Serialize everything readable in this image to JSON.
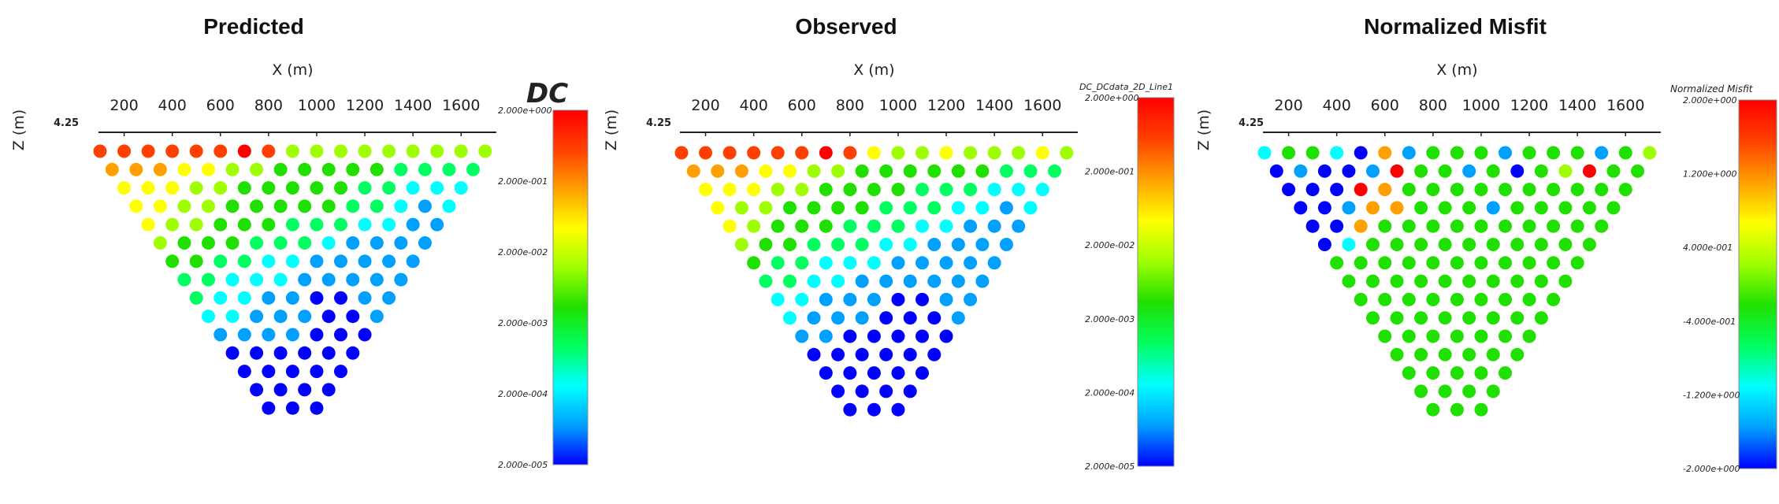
{
  "figure": {
    "colors": {
      "colormap": [
        "#0000ff",
        "#00a0ff",
        "#00ffff",
        "#00ff60",
        "#20e000",
        "#9fff00",
        "#ffff00",
        "#ffa000",
        "#ff4000",
        "#ff0000"
      ]
    }
  },
  "chart_data": [
    {
      "type": "scatter",
      "title": "Predicted",
      "xlabel": "X (m)",
      "ylabel": "Z (m)",
      "x_ticks": [
        "200",
        "400",
        "600",
        "800",
        "1000",
        "1200",
        "1400",
        "1600"
      ],
      "z_tick_label": "4.25",
      "xlim": [
        100,
        1720
      ],
      "colorbar": {
        "title": "DC",
        "scale": "log",
        "ticks": [
          "2.000e+000",
          "2.000e-001",
          "2.000e-002",
          "2.000e-003",
          "2.000e-004",
          "2.000e-005"
        ]
      },
      "pseudosection": {
        "rows": 15,
        "x_start": 100,
        "x_spacing": 100,
        "first_row_count": 17,
        "color_index_rows": [
          [
            8,
            8,
            8,
            8,
            8,
            8,
            9,
            8,
            5,
            5,
            5,
            5,
            5,
            5,
            5,
            5,
            5
          ],
          [
            7,
            7,
            7,
            6,
            6,
            5,
            5,
            4,
            4,
            4,
            4,
            4,
            3,
            3,
            3,
            3
          ],
          [
            6,
            6,
            6,
            5,
            5,
            4,
            4,
            4,
            4,
            4,
            3,
            3,
            2,
            2,
            2
          ],
          [
            6,
            6,
            5,
            5,
            4,
            4,
            4,
            4,
            4,
            3,
            3,
            2,
            1,
            2
          ],
          [
            6,
            5,
            5,
            4,
            4,
            4,
            3,
            3,
            3,
            2,
            2,
            1,
            1
          ],
          [
            5,
            4,
            4,
            4,
            3,
            3,
            3,
            2,
            1,
            1,
            1,
            1
          ],
          [
            4,
            4,
            3,
            3,
            2,
            2,
            1,
            1,
            1,
            1,
            1
          ],
          [
            3,
            3,
            2,
            2,
            2,
            1,
            1,
            1,
            1,
            1
          ],
          [
            3,
            2,
            2,
            1,
            1,
            0,
            0,
            1,
            1
          ],
          [
            2,
            2,
            1,
            1,
            1,
            0,
            0,
            1
          ],
          [
            1,
            1,
            1,
            1,
            0,
            0,
            0
          ],
          [
            0,
            0,
            0,
            0,
            0,
            0
          ],
          [
            0,
            0,
            0,
            0,
            0
          ],
          [
            0,
            0,
            0,
            0
          ],
          [
            0,
            0,
            0
          ]
        ]
      }
    },
    {
      "type": "scatter",
      "title": "Observed",
      "xlabel": "X (m)",
      "ylabel": "Z (m)",
      "x_ticks": [
        "200",
        "400",
        "600",
        "800",
        "1000",
        "1200",
        "1400",
        "1600"
      ],
      "z_tick_label": "4.25",
      "xlim": [
        100,
        1720
      ],
      "colorbar": {
        "title": "DC_DCdata_2D_Line1",
        "scale": "log",
        "ticks": [
          "2.000e+000",
          "2.000e-001",
          "2.000e-002",
          "2.000e-003",
          "2.000e-004",
          "2.000e-005"
        ]
      },
      "pseudosection": {
        "rows": 15,
        "x_start": 100,
        "x_spacing": 100,
        "first_row_count": 17,
        "color_index_rows": [
          [
            8,
            8,
            8,
            8,
            8,
            8,
            9,
            8,
            6,
            5,
            5,
            6,
            5,
            5,
            5,
            6,
            5
          ],
          [
            7,
            7,
            7,
            6,
            6,
            5,
            5,
            4,
            4,
            4,
            4,
            4,
            4,
            3,
            3,
            3
          ],
          [
            6,
            6,
            6,
            5,
            5,
            4,
            4,
            4,
            4,
            3,
            3,
            3,
            2,
            2,
            2
          ],
          [
            6,
            5,
            5,
            4,
            4,
            4,
            4,
            3,
            3,
            3,
            2,
            2,
            1,
            2
          ],
          [
            6,
            5,
            4,
            4,
            4,
            3,
            3,
            3,
            2,
            2,
            1,
            1,
            1
          ],
          [
            5,
            4,
            4,
            3,
            3,
            3,
            2,
            2,
            1,
            1,
            1,
            1
          ],
          [
            4,
            3,
            3,
            2,
            2,
            2,
            1,
            1,
            1,
            1,
            1
          ],
          [
            3,
            3,
            2,
            2,
            1,
            1,
            1,
            1,
            1,
            1
          ],
          [
            2,
            2,
            1,
            1,
            1,
            0,
            0,
            1,
            1
          ],
          [
            2,
            1,
            1,
            1,
            0,
            0,
            0,
            1
          ],
          [
            1,
            1,
            0,
            0,
            0,
            0,
            0
          ],
          [
            0,
            0,
            0,
            0,
            0,
            0
          ],
          [
            0,
            0,
            0,
            0,
            0
          ],
          [
            0,
            0,
            0,
            0
          ],
          [
            0,
            0,
            0
          ]
        ]
      }
    },
    {
      "type": "scatter",
      "title": "Normalized Misfit",
      "xlabel": "X (m)",
      "ylabel": "Z (m)",
      "x_ticks": [
        "200",
        "400",
        "600",
        "800",
        "1000",
        "1200",
        "1400",
        "1600"
      ],
      "z_tick_label": "4.25",
      "xlim": [
        100,
        1720
      ],
      "colorbar": {
        "title": "Normalized Misfit",
        "scale": "linear",
        "range": [
          -2.0,
          2.0
        ],
        "ticks": [
          "2.000e+000",
          "1.200e+000",
          "4.000e-001",
          "-4.000e-001",
          "-1.200e+000",
          "-2.000e+000"
        ]
      },
      "pseudosection": {
        "rows": 15,
        "x_start": 100,
        "x_spacing": 100,
        "first_row_count": 17,
        "color_index_rows": [
          [
            2,
            4,
            4,
            2,
            0,
            7,
            1,
            4,
            4,
            4,
            1,
            4,
            4,
            4,
            1,
            4,
            5
          ],
          [
            0,
            1,
            0,
            0,
            1,
            9,
            4,
            4,
            1,
            4,
            0,
            4,
            5,
            9,
            4,
            4
          ],
          [
            0,
            0,
            0,
            9,
            7,
            4,
            4,
            4,
            4,
            4,
            4,
            4,
            4,
            4,
            4
          ],
          [
            0,
            0,
            1,
            7,
            7,
            4,
            4,
            4,
            1,
            4,
            4,
            4,
            4,
            4
          ],
          [
            0,
            0,
            7,
            4,
            4,
            4,
            4,
            4,
            4,
            4,
            4,
            4,
            4
          ],
          [
            0,
            2,
            4,
            4,
            4,
            4,
            4,
            4,
            4,
            4,
            4,
            4
          ],
          [
            4,
            4,
            4,
            4,
            4,
            4,
            4,
            4,
            4,
            4,
            4
          ],
          [
            4,
            4,
            4,
            4,
            4,
            4,
            4,
            4,
            4,
            4
          ],
          [
            4,
            4,
            4,
            4,
            4,
            4,
            4,
            4,
            4
          ],
          [
            4,
            4,
            4,
            4,
            4,
            4,
            4,
            4
          ],
          [
            4,
            4,
            4,
            4,
            4,
            4,
            4
          ],
          [
            4,
            4,
            4,
            4,
            4,
            4
          ],
          [
            4,
            4,
            4,
            4,
            4
          ],
          [
            4,
            4,
            4,
            4
          ],
          [
            4,
            4,
            4
          ]
        ]
      }
    }
  ]
}
